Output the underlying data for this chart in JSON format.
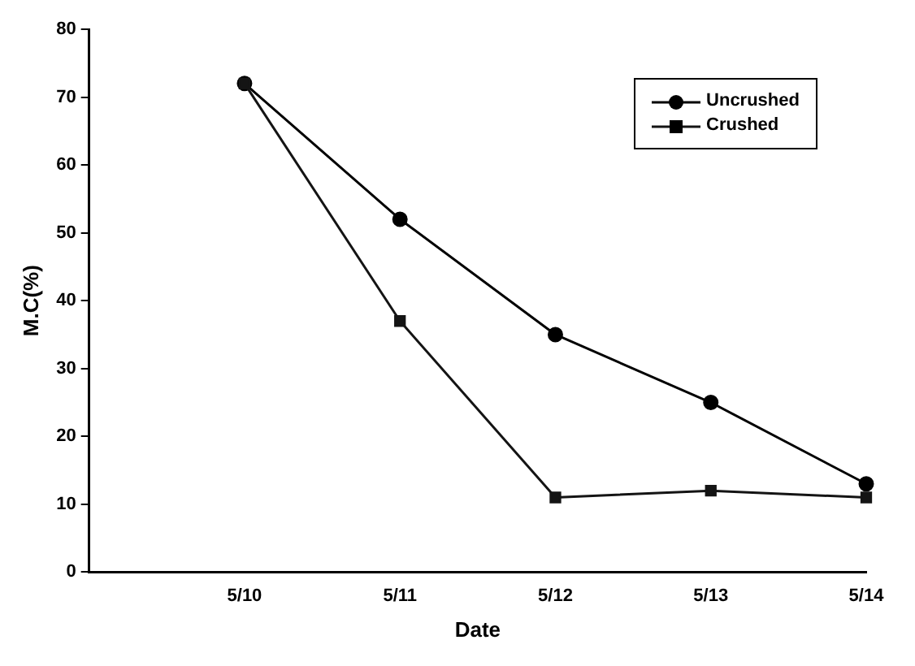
{
  "chart_data": {
    "type": "line",
    "xlabel": "Date",
    "ylabel": "M.C(%)",
    "categories": [
      null,
      "5/10",
      "5/11",
      "5/12",
      "5/13",
      "5/14"
    ],
    "series": [
      {
        "name": "Uncrushed",
        "color": "#000000",
        "marker": "circle",
        "values": [
          null,
          72,
          52,
          35,
          25,
          13
        ]
      },
      {
        "name": "Crushed",
        "color": "#141414",
        "marker": "square",
        "values": [
          null,
          72,
          37,
          11,
          12,
          11
        ]
      }
    ],
    "ylim": [
      0,
      80
    ],
    "yticks": [
      0,
      10,
      20,
      30,
      40,
      50,
      60,
      70,
      80
    ],
    "grid": false,
    "legend": "top right",
    "line_style": "solid"
  }
}
